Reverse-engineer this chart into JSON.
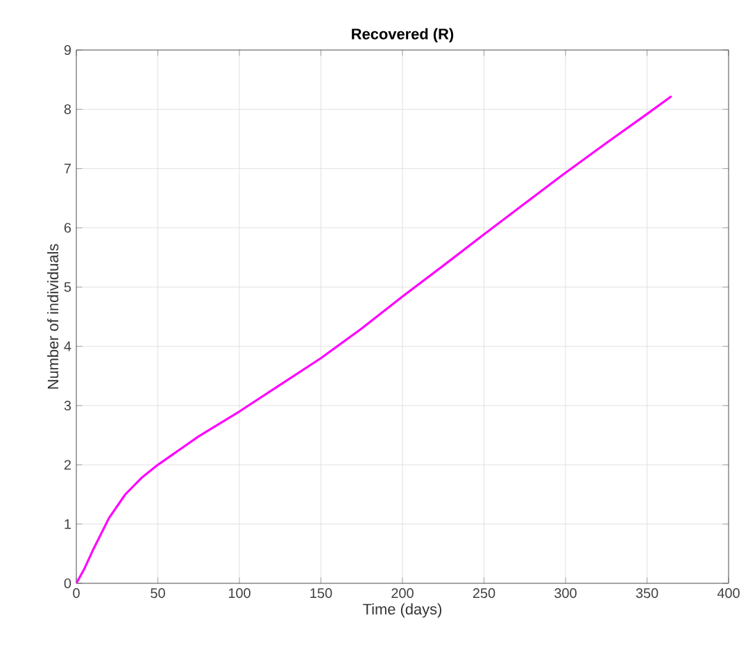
{
  "chart_data": {
    "type": "line",
    "title": "Recovered (R)",
    "xlabel": "Time (days)",
    "ylabel": "Number of individuals",
    "x": [
      0,
      5,
      10,
      20,
      30,
      40,
      50,
      75,
      100,
      125,
      150,
      175,
      200,
      225,
      250,
      275,
      300,
      325,
      350,
      365
    ],
    "series": [
      {
        "color": "#ff00ff",
        "values": [
          0,
          0.25,
          0.55,
          1.1,
          1.5,
          1.78,
          2.0,
          2.48,
          2.9,
          3.35,
          3.8,
          4.3,
          4.84,
          5.36,
          5.89,
          6.41,
          6.93,
          7.43,
          7.92,
          8.22
        ]
      }
    ],
    "xlim": [
      0,
      400
    ],
    "ylim": [
      0,
      9
    ],
    "xticks": [
      0,
      50,
      100,
      150,
      200,
      250,
      300,
      350,
      400
    ],
    "yticks": [
      0,
      1,
      2,
      3,
      4,
      5,
      6,
      7,
      8,
      9
    ],
    "grid": true,
    "marker": "none",
    "line_style": "solid"
  }
}
